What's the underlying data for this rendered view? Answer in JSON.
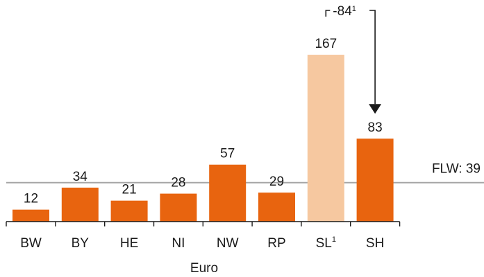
{
  "chart_data": {
    "type": "bar",
    "categories": [
      "BW",
      "BY",
      "HE",
      "NI",
      "NW",
      "RP",
      "SL",
      "SH"
    ],
    "category_superscripts": [
      "",
      "",
      "",
      "",
      "",
      "",
      "1",
      ""
    ],
    "values": [
      12,
      34,
      21,
      28,
      57,
      29,
      167,
      83
    ],
    "value_labels": [
      "12",
      "34",
      "21",
      "28",
      "57",
      "29",
      "167",
      "83"
    ],
    "highlight_index": 6,
    "colors": {
      "bar": "#e8640f",
      "highlight": "#f6c8a0",
      "reference": "#a6a6a6",
      "axis": "#1a1a1a"
    },
    "reference_line": {
      "value": 39,
      "label": "FLW: 39"
    },
    "annotation": {
      "from_category": "SL",
      "to_category": "SH",
      "text": "-84",
      "superscript": "1"
    },
    "xlabel": "Euro",
    "ylabel": "",
    "ylim": [
      0,
      167
    ]
  }
}
